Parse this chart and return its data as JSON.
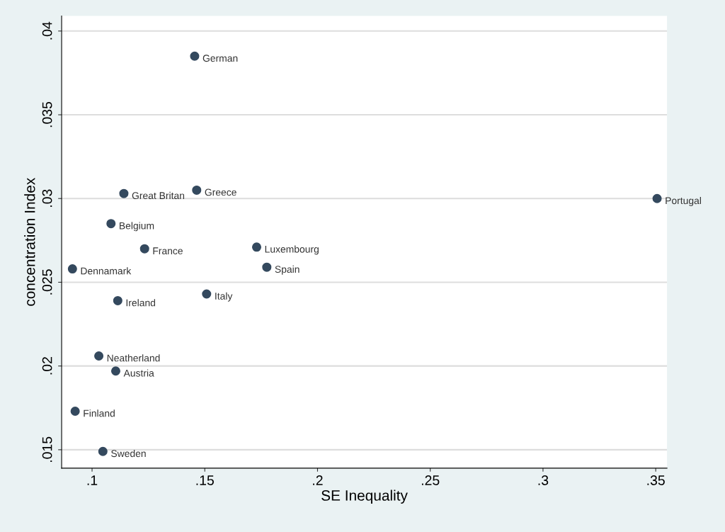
{
  "chart_data": {
    "type": "scatter",
    "xlabel": "SE Inequality",
    "ylabel": "concentration Index",
    "x": [
      0.1455,
      0.1464,
      0.1141,
      0.3506,
      0.1084,
      0.1233,
      0.173,
      0.1775,
      0.0913,
      0.1508,
      0.1114,
      0.103,
      0.1105,
      0.0925,
      0.1048
    ],
    "series": [
      {
        "color": "#34495e",
        "values": [
          0.0385,
          0.0305,
          0.0303,
          0.03,
          0.0285,
          0.027,
          0.0271,
          0.0259,
          0.0258,
          0.0243,
          0.0239,
          0.0206,
          0.0197,
          0.0173,
          0.0149
        ]
      }
    ],
    "annotations": [
      {
        "text": "German",
        "x": 0.1455,
        "y": 0.0385
      },
      {
        "text": "Greece",
        "x": 0.1464,
        "y": 0.0305
      },
      {
        "text": "Great Britan",
        "x": 0.1141,
        "y": 0.0303
      },
      {
        "text": "Portugal",
        "x": 0.3506,
        "y": 0.03
      },
      {
        "text": "Belgium",
        "x": 0.1084,
        "y": 0.0285
      },
      {
        "text": "France",
        "x": 0.1233,
        "y": 0.027
      },
      {
        "text": "Luxembourg",
        "x": 0.173,
        "y": 0.0271
      },
      {
        "text": "Spain",
        "x": 0.1775,
        "y": 0.0259
      },
      {
        "text": "Dennamark",
        "x": 0.0913,
        "y": 0.0258
      },
      {
        "text": "Italy",
        "x": 0.1508,
        "y": 0.0243
      },
      {
        "text": "Ireland",
        "x": 0.1114,
        "y": 0.0239
      },
      {
        "text": "Neatherland",
        "x": 0.103,
        "y": 0.0206
      },
      {
        "text": "Austria",
        "x": 0.1105,
        "y": 0.0197
      },
      {
        "text": "Finland",
        "x": 0.0925,
        "y": 0.0173
      },
      {
        "text": "Sweden",
        "x": 0.1048,
        "y": 0.0149
      }
    ],
    "xlim": [
      0.0865,
      0.355
    ],
    "ylim": [
      0.0139,
      0.0409
    ],
    "xticks": [
      {
        "value": 0.1,
        "label": ".1"
      },
      {
        "value": 0.15,
        "label": ".15"
      },
      {
        "value": 0.2,
        "label": ".2"
      },
      {
        "value": 0.25,
        "label": ".25"
      },
      {
        "value": 0.3,
        "label": ".3"
      },
      {
        "value": 0.35,
        "label": ".35"
      }
    ],
    "yticks": [
      {
        "value": 0.015,
        "label": ".015"
      },
      {
        "value": 0.02,
        "label": ".02"
      },
      {
        "value": 0.025,
        "label": ".025"
      },
      {
        "value": 0.03,
        "label": ".03"
      },
      {
        "value": 0.035,
        "label": ".035"
      },
      {
        "value": 0.04,
        "label": ".04"
      }
    ],
    "grid": "y",
    "marker": "circle"
  }
}
